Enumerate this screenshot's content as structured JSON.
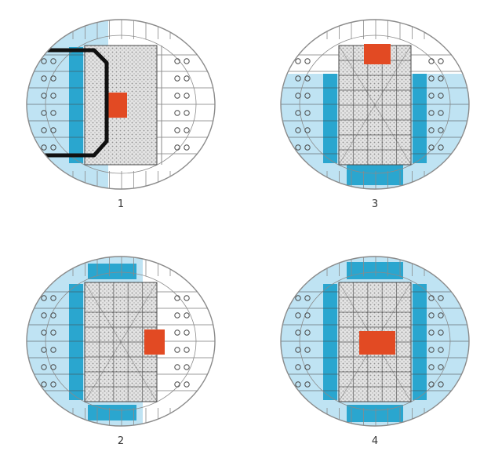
{
  "colors": {
    "background": "#ffffff",
    "outline": "#8a8a8a",
    "light_blue": "#bfe3f3",
    "mid_blue": "#8ed0ea",
    "dark_blue": "#2aa6cf",
    "grid_line": "#4a4a4a",
    "court": "#d7d7d7",
    "stipple": "#9a9a9a",
    "red": "#e24a23",
    "black_frame": "#111111"
  },
  "icons": {
    "seat_group": "double-circle-seat-icon",
    "red_block": "red-square-marker-icon"
  },
  "diagrams": [
    {
      "id": "1",
      "label": "1",
      "fill_mode": "left",
      "red_position": "left-center",
      "has_black_frame": true,
      "has_grid": false
    },
    {
      "id": "2",
      "label": "2",
      "fill_mode": "left-two-thirds",
      "red_position": "right-center",
      "has_black_frame": false,
      "has_grid": true
    },
    {
      "id": "3",
      "label": "3",
      "fill_mode": "three-quarters",
      "red_position": "top-center",
      "has_black_frame": false,
      "has_grid": true
    },
    {
      "id": "4",
      "label": "4",
      "fill_mode": "full",
      "red_position": "center",
      "has_black_frame": false,
      "has_grid": true
    }
  ]
}
